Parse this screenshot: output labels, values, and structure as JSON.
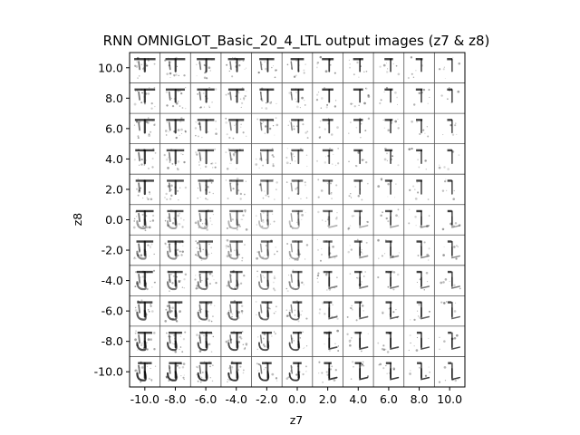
{
  "chart_data": {
    "type": "image-grid",
    "title": "RNN OMNIGLOT_Basic_20_4_LTL output images (z7 & z8)",
    "xlabel": "z7",
    "ylabel": "z8",
    "x_values": [
      -10.0,
      -8.0,
      -6.0,
      -4.0,
      -2.0,
      0.0,
      2.0,
      4.0,
      6.0,
      8.0,
      10.0
    ],
    "y_values": [
      10.0,
      8.0,
      6.0,
      4.0,
      2.0,
      0.0,
      -2.0,
      -4.0,
      -6.0,
      -8.0,
      -10.0
    ],
    "x_tick_labels": [
      "-10.0",
      "-8.0",
      "-6.0",
      "-4.0",
      "-2.0",
      "0.0",
      "2.0",
      "4.0",
      "6.0",
      "8.0",
      "10.0"
    ],
    "y_tick_labels": [
      "10.0",
      "8.0",
      "6.0",
      "4.0",
      "2.0",
      "0.0",
      "-2.0",
      "-4.0",
      "-6.0",
      "-8.0",
      "-10.0"
    ],
    "grid_rows": 11,
    "grid_cols": 11,
    "cell_content": "generated glyph images"
  }
}
